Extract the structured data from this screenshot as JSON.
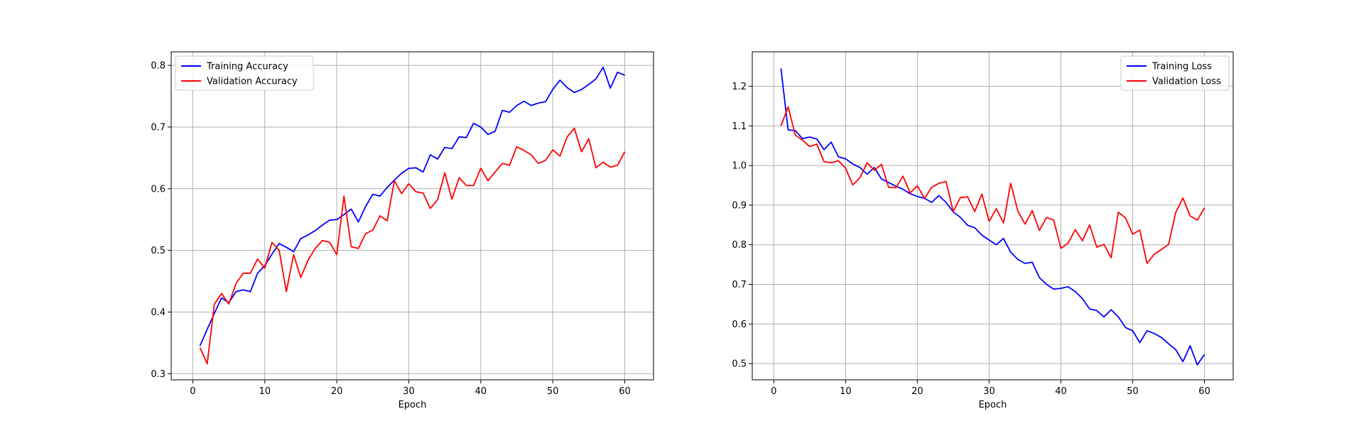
{
  "chart_data": [
    {
      "type": "line",
      "title": "",
      "xlabel": "Epoch",
      "ylabel": "",
      "xlim": [
        -3,
        64
      ],
      "ylim": [
        0.29,
        0.822
      ],
      "xticks": [
        0,
        10,
        20,
        30,
        40,
        50,
        60
      ],
      "yticks": [
        0.3,
        0.4,
        0.5,
        0.6,
        0.7,
        0.8
      ],
      "ytick_labels": [
        "0.3",
        "0.4",
        "0.5",
        "0.6",
        "0.7",
        "0.8"
      ],
      "grid": true,
      "legend_position": "top-left",
      "x": [
        1,
        2,
        3,
        4,
        5,
        6,
        7,
        8,
        9,
        10,
        11,
        12,
        13,
        14,
        15,
        16,
        17,
        18,
        19,
        20,
        21,
        22,
        23,
        24,
        25,
        26,
        27,
        28,
        29,
        30,
        31,
        32,
        33,
        34,
        35,
        36,
        37,
        38,
        39,
        40,
        41,
        42,
        43,
        44,
        45,
        46,
        47,
        48,
        49,
        50,
        51,
        52,
        53,
        54,
        55,
        56,
        57,
        58,
        59,
        60
      ],
      "series": [
        {
          "name": "Training Accuracy",
          "color": "#0000ff",
          "values": [
            0.345,
            0.372,
            0.398,
            0.423,
            0.415,
            0.433,
            0.436,
            0.433,
            0.463,
            0.475,
            0.494,
            0.511,
            0.505,
            0.498,
            0.519,
            0.525,
            0.532,
            0.541,
            0.549,
            0.55,
            0.558,
            0.567,
            0.546,
            0.571,
            0.591,
            0.588,
            0.602,
            0.614,
            0.625,
            0.633,
            0.634,
            0.627,
            0.655,
            0.648,
            0.667,
            0.665,
            0.684,
            0.683,
            0.706,
            0.7,
            0.688,
            0.693,
            0.727,
            0.724,
            0.735,
            0.742,
            0.735,
            0.739,
            0.741,
            0.761,
            0.776,
            0.764,
            0.756,
            0.761,
            0.769,
            0.778,
            0.797,
            0.763,
            0.789,
            0.784
          ]
        },
        {
          "name": "Validation Accuracy",
          "color": "#ff0000",
          "values": [
            0.342,
            0.316,
            0.413,
            0.43,
            0.413,
            0.446,
            0.463,
            0.463,
            0.486,
            0.471,
            0.513,
            0.5,
            0.433,
            0.493,
            0.456,
            0.484,
            0.503,
            0.516,
            0.513,
            0.493,
            0.588,
            0.506,
            0.503,
            0.527,
            0.533,
            0.556,
            0.548,
            0.613,
            0.592,
            0.608,
            0.595,
            0.593,
            0.568,
            0.582,
            0.626,
            0.583,
            0.618,
            0.605,
            0.605,
            0.633,
            0.613,
            0.627,
            0.641,
            0.638,
            0.668,
            0.662,
            0.655,
            0.641,
            0.646,
            0.663,
            0.653,
            0.684,
            0.698,
            0.66,
            0.681,
            0.634,
            0.643,
            0.635,
            0.638,
            0.66
          ]
        }
      ]
    },
    {
      "type": "line",
      "title": "",
      "xlabel": "Epoch",
      "ylabel": "",
      "xlim": [
        -3,
        64
      ],
      "ylim": [
        0.459,
        1.287
      ],
      "xticks": [
        0,
        10,
        20,
        30,
        40,
        50,
        60
      ],
      "yticks": [
        0.5,
        0.6,
        0.7,
        0.8,
        0.9,
        1.0,
        1.1,
        1.2
      ],
      "ytick_labels": [
        "0.5",
        "0.6",
        "0.7",
        "0.8",
        "0.9",
        "1.0",
        "1.1",
        "1.2"
      ],
      "grid": true,
      "legend_position": "top-right",
      "x": [
        1,
        2,
        3,
        4,
        5,
        6,
        7,
        8,
        9,
        10,
        11,
        12,
        13,
        14,
        15,
        16,
        17,
        18,
        19,
        20,
        21,
        22,
        23,
        24,
        25,
        26,
        27,
        28,
        29,
        30,
        31,
        32,
        33,
        34,
        35,
        36,
        37,
        38,
        39,
        40,
        41,
        42,
        43,
        44,
        45,
        46,
        47,
        48,
        49,
        50,
        51,
        52,
        53,
        54,
        55,
        56,
        57,
        58,
        59,
        60
      ],
      "series": [
        {
          "name": "Training Loss",
          "color": "#0000ff",
          "values": [
            1.245,
            1.09,
            1.088,
            1.068,
            1.072,
            1.067,
            1.04,
            1.059,
            1.022,
            1.017,
            1.004,
            0.995,
            0.978,
            0.995,
            0.966,
            0.957,
            0.948,
            0.94,
            0.929,
            0.922,
            0.917,
            0.907,
            0.924,
            0.907,
            0.883,
            0.869,
            0.849,
            0.843,
            0.824,
            0.812,
            0.8,
            0.816,
            0.781,
            0.763,
            0.753,
            0.756,
            0.717,
            0.7,
            0.688,
            0.69,
            0.694,
            0.682,
            0.664,
            0.638,
            0.634,
            0.618,
            0.636,
            0.618,
            0.591,
            0.583,
            0.553,
            0.583,
            0.576,
            0.566,
            0.55,
            0.535,
            0.505,
            0.545,
            0.497,
            0.523
          ]
        },
        {
          "name": "Validation Loss",
          "color": "#ff0000",
          "values": [
            1.1,
            1.148,
            1.077,
            1.064,
            1.048,
            1.054,
            1.01,
            1.007,
            1.012,
            0.993,
            0.951,
            0.969,
            1.007,
            0.988,
            1.003,
            0.945,
            0.944,
            0.973,
            0.931,
            0.949,
            0.917,
            0.945,
            0.955,
            0.96,
            0.884,
            0.919,
            0.921,
            0.884,
            0.928,
            0.859,
            0.891,
            0.855,
            0.955,
            0.885,
            0.852,
            0.886,
            0.836,
            0.869,
            0.862,
            0.791,
            0.804,
            0.838,
            0.81,
            0.85,
            0.794,
            0.801,
            0.767,
            0.882,
            0.868,
            0.827,
            0.837,
            0.753,
            0.776,
            0.788,
            0.801,
            0.882,
            0.918,
            0.873,
            0.862,
            0.893
          ]
        }
      ]
    }
  ]
}
